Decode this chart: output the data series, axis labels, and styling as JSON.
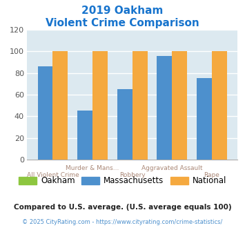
{
  "title_line1": "2019 Oakham",
  "title_line2": "Violent Crime Comparison",
  "title_color": "#1874cd",
  "groups": [
    "All Violent Crime",
    "Murder & Mans...",
    "Robbery",
    "Aggravated Assault",
    "Rape"
  ],
  "x_labels_top": [
    "",
    "Murder & Mans...",
    "",
    "Aggravated Assault",
    ""
  ],
  "x_labels_bottom": [
    "All Violent Crime",
    "",
    "Robbery",
    "",
    "Rape"
  ],
  "oakham": [
    0,
    0,
    0,
    0,
    0
  ],
  "massachusetts": [
    86,
    45,
    65,
    96,
    75
  ],
  "national": [
    100,
    100,
    100,
    100,
    100
  ],
  "bar_colors": {
    "oakham": "#8dc63f",
    "massachusetts": "#4d90cd",
    "national": "#f5a93f"
  },
  "ylim": [
    0,
    120
  ],
  "yticks": [
    0,
    20,
    40,
    60,
    80,
    100,
    120
  ],
  "plot_bg": "#dce9f0",
  "grid_color": "#ffffff",
  "legend_labels": [
    "Oakham",
    "Massachusetts",
    "National"
  ],
  "footer_text": "Compared to U.S. average. (U.S. average equals 100)",
  "footer_color": "#222222",
  "copyright_text": "© 2025 CityRating.com - https://www.cityrating.com/crime-statistics/",
  "copyright_color": "#4d90cd",
  "x_label_color_top": "#aa8877",
  "x_label_color_bottom": "#aa8877",
  "bar_width": 0.38
}
